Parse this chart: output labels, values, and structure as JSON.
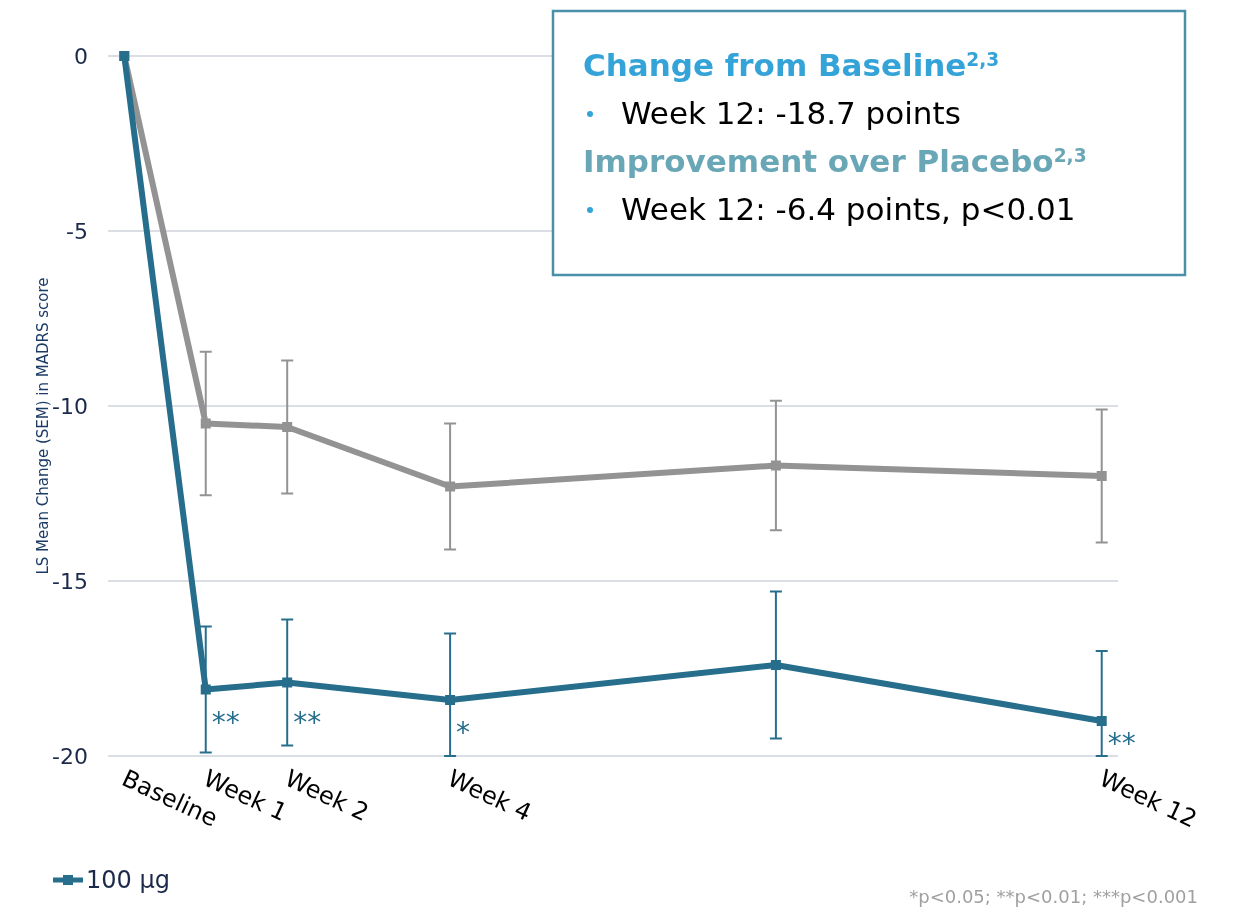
{
  "chart_data": {
    "type": "line",
    "ylabel": "LS Mean Change (SEM) in MADRS score",
    "categories": [
      "Baseline",
      "Week 1",
      "Week 2",
      null,
      "Week 4",
      null,
      null,
      null,
      null,
      null,
      null,
      null,
      "Week 12"
    ],
    "ylim": [
      -20,
      0
    ],
    "yticks": [
      0,
      -5,
      -10,
      -15,
      -20
    ],
    "grid": "y",
    "marker": "square",
    "line_style": "solid",
    "legend": "bottom left",
    "series": [
      {
        "color": "#939393",
        "values": [
          0,
          -10.5,
          -10.6,
          null,
          -12.3,
          null,
          null,
          null,
          -11.7,
          null,
          null,
          null,
          -12.0
        ],
        "errors": [
          null,
          2.05,
          1.9,
          null,
          1.8,
          null,
          null,
          null,
          1.85,
          null,
          null,
          null,
          1.9
        ]
      },
      {
        "name": "100 µg",
        "color": "#266e8c",
        "values": [
          0,
          -18.1,
          -17.9,
          null,
          -18.4,
          null,
          null,
          null,
          -17.4,
          null,
          null,
          null,
          -19.0
        ],
        "errors": [
          null,
          1.8,
          1.8,
          null,
          [
            -20,
            -16.5
          ],
          null,
          null,
          null,
          2.1,
          null,
          null,
          null,
          [
            -20,
            -17.0
          ]
        ]
      }
    ],
    "annotations": [
      "Change from Baseline$^{2,3}$",
      "Week 12: -18.7 points",
      "Improvement over Placebo$^{2,3}$",
      "Week 12: -6.4 points, p<0.01",
      {
        "text": "**",
        "x": "Week 1",
        "y": -19.3
      },
      {
        "text": "**",
        "x": "Week 2",
        "y": -19.3
      },
      {
        "text": "*",
        "x": "Week 4",
        "y": -19.6
      },
      {
        "text": "**",
        "x": "Week 12",
        "y": -19.9
      },
      "*p<0.05; **p<0.01; ***p<0.001"
    ]
  }
}
